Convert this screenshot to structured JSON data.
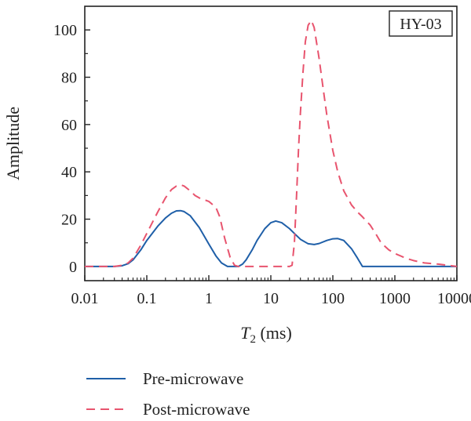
{
  "chart_data": {
    "type": "line",
    "title": "",
    "annotation": "HY-03",
    "xlabel": {
      "main": "T",
      "sub": "2",
      "unit": " (ms)"
    },
    "ylabel": "Amplitude",
    "xscale": "log",
    "xlim": [
      0.01,
      10000
    ],
    "ylim": [
      -6,
      110
    ],
    "xticks": [
      {
        "v": 0.01,
        "label": "0.01"
      },
      {
        "v": 0.1,
        "label": "0.1"
      },
      {
        "v": 1,
        "label": "1"
      },
      {
        "v": 10,
        "label": "10"
      },
      {
        "v": 100,
        "label": "100"
      },
      {
        "v": 1000,
        "label": "1000"
      },
      {
        "v": 10000,
        "label": "10000"
      }
    ],
    "yticks": [
      {
        "v": 0,
        "label": "0"
      },
      {
        "v": 20,
        "label": "20"
      },
      {
        "v": 40,
        "label": "40"
      },
      {
        "v": 60,
        "label": "60"
      },
      {
        "v": 80,
        "label": "80"
      },
      {
        "v": 100,
        "label": "100"
      }
    ],
    "legend_position": "bottom",
    "series": [
      {
        "name": "Pre-microwave",
        "color": "#1f5fa8",
        "dash": "solid",
        "points": [
          [
            0.01,
            0
          ],
          [
            0.03,
            0
          ],
          [
            0.04,
            0.3
          ],
          [
            0.05,
            1.2
          ],
          [
            0.06,
            2.8
          ],
          [
            0.08,
            7
          ],
          [
            0.1,
            11
          ],
          [
            0.15,
            17
          ],
          [
            0.2,
            20.5
          ],
          [
            0.25,
            22.5
          ],
          [
            0.3,
            23.5
          ],
          [
            0.35,
            23.6
          ],
          [
            0.4,
            23.2
          ],
          [
            0.5,
            21.5
          ],
          [
            0.7,
            16.5
          ],
          [
            1,
            9.5
          ],
          [
            1.3,
            4.5
          ],
          [
            1.6,
            1.5
          ],
          [
            2,
            0
          ],
          [
            2.5,
            0
          ],
          [
            3,
            0
          ],
          [
            3.5,
            1
          ],
          [
            4,
            2.8
          ],
          [
            5,
            7
          ],
          [
            6,
            11
          ],
          [
            8,
            16
          ],
          [
            10,
            18.5
          ],
          [
            12,
            19.2
          ],
          [
            15,
            18.5
          ],
          [
            20,
            16
          ],
          [
            25,
            13.5
          ],
          [
            30,
            11.5
          ],
          [
            40,
            9.6
          ],
          [
            50,
            9.3
          ],
          [
            60,
            9.7
          ],
          [
            80,
            11
          ],
          [
            100,
            11.7
          ],
          [
            120,
            11.8
          ],
          [
            150,
            11
          ],
          [
            200,
            7.5
          ],
          [
            250,
            3.5
          ],
          [
            300,
            0
          ],
          [
            1000,
            0
          ],
          [
            10000,
            0
          ]
        ]
      },
      {
        "name": "Post-microwave",
        "color": "#e8546e",
        "dash": "dashed",
        "points": [
          [
            0.01,
            0
          ],
          [
            0.03,
            0
          ],
          [
            0.04,
            0.5
          ],
          [
            0.05,
            1.5
          ],
          [
            0.06,
            3.5
          ],
          [
            0.08,
            9
          ],
          [
            0.1,
            14
          ],
          [
            0.15,
            23
          ],
          [
            0.2,
            29
          ],
          [
            0.25,
            32.5
          ],
          [
            0.3,
            34
          ],
          [
            0.35,
            34.5
          ],
          [
            0.4,
            34
          ],
          [
            0.5,
            32
          ],
          [
            0.6,
            30
          ],
          [
            0.7,
            29
          ],
          [
            1,
            27.5
          ],
          [
            1.3,
            25
          ],
          [
            1.5,
            21
          ],
          [
            1.8,
            12
          ],
          [
            2.2,
            4
          ],
          [
            2.6,
            0.5
          ],
          [
            3,
            0
          ],
          [
            10,
            0
          ],
          [
            20,
            0
          ],
          [
            22,
            0.5
          ],
          [
            24,
            10
          ],
          [
            26,
            30
          ],
          [
            28,
            50
          ],
          [
            30,
            65
          ],
          [
            33,
            82
          ],
          [
            36,
            95
          ],
          [
            40,
            102
          ],
          [
            45,
            104
          ],
          [
            50,
            101
          ],
          [
            60,
            88
          ],
          [
            70,
            75
          ],
          [
            80,
            64
          ],
          [
            100,
            49
          ],
          [
            120,
            40
          ],
          [
            150,
            32
          ],
          [
            200,
            26
          ],
          [
            250,
            23
          ],
          [
            300,
            21
          ],
          [
            400,
            17.5
          ],
          [
            500,
            13.5
          ],
          [
            600,
            10
          ],
          [
            800,
            7
          ],
          [
            1000,
            5.5
          ],
          [
            1500,
            3.5
          ],
          [
            2000,
            2.5
          ],
          [
            3000,
            1.5
          ],
          [
            5000,
            1
          ],
          [
            10000,
            0
          ]
        ]
      }
    ]
  }
}
